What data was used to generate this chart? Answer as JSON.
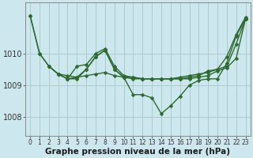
{
  "background_color": "#cce8ee",
  "grid_color": "#aacccc",
  "line_color": "#2d6a2d",
  "marker_color": "#2d6a2d",
  "xlabel": "Graphe pression niveau de la mer (hPa)",
  "xlim": [
    -0.5,
    23.5
  ],
  "ylim": [
    1007.4,
    1011.6
  ],
  "yticks": [
    1008,
    1009,
    1010
  ],
  "xticks": [
    0,
    1,
    2,
    3,
    4,
    5,
    6,
    7,
    8,
    9,
    10,
    11,
    12,
    13,
    14,
    15,
    16,
    17,
    18,
    19,
    20,
    21,
    22,
    23
  ],
  "series": [
    {
      "x": [
        0,
        1,
        2,
        3,
        4,
        5,
        6,
        7,
        8,
        9,
        10,
        11,
        12,
        13,
        14,
        15,
        16,
        17,
        18,
        19,
        20,
        21,
        22,
        23
      ],
      "y": [
        1011.2,
        1010.0,
        1009.6,
        1009.35,
        1009.3,
        1009.25,
        1009.3,
        1009.35,
        1009.4,
        1009.3,
        1009.25,
        1009.25,
        1009.2,
        1009.2,
        1009.2,
        1009.2,
        1009.25,
        1009.3,
        1009.35,
        1009.4,
        1009.5,
        1009.6,
        1010.3,
        1011.1
      ]
    },
    {
      "x": [
        0,
        1,
        2,
        3,
        4,
        5,
        6,
        7,
        8,
        9,
        10,
        11,
        12,
        13,
        14,
        15,
        16,
        17,
        18,
        19,
        20,
        21,
        22,
        23
      ],
      "y": [
        1011.2,
        1010.0,
        1009.6,
        1009.35,
        1009.2,
        1009.2,
        1009.5,
        1009.9,
        1010.1,
        1009.5,
        1009.25,
        1008.7,
        1008.7,
        1008.6,
        1008.1,
        1008.35,
        1008.65,
        1009.0,
        1009.15,
        1009.2,
        1009.2,
        1009.7,
        1010.55,
        1011.1
      ]
    },
    {
      "x": [
        3,
        4,
        5,
        6,
        7,
        8,
        9,
        10,
        11,
        12,
        13,
        14,
        15,
        16,
        17,
        18,
        19,
        20,
        21,
        22,
        23
      ],
      "y": [
        1009.35,
        1009.2,
        1009.25,
        1009.5,
        1009.9,
        1010.1,
        1009.5,
        1009.25,
        1009.2,
        1009.2,
        1009.2,
        1009.2,
        1009.2,
        1009.2,
        1009.2,
        1009.25,
        1009.3,
        1009.45,
        1009.55,
        1009.85,
        1011.1
      ]
    },
    {
      "x": [
        2,
        3,
        4,
        5,
        6,
        7,
        8,
        9,
        10,
        11,
        12,
        13,
        14,
        15,
        16,
        17,
        18,
        19,
        20,
        21,
        22,
        23
      ],
      "y": [
        1009.6,
        1009.35,
        1009.2,
        1009.6,
        1009.65,
        1010.0,
        1010.15,
        1009.6,
        1009.3,
        1009.25,
        1009.2,
        1009.2,
        1009.2,
        1009.2,
        1009.2,
        1009.25,
        1009.3,
        1009.45,
        1009.5,
        1009.9,
        1010.6,
        1011.15
      ]
    }
  ],
  "marker_size": 2.5,
  "line_width": 1.0,
  "font_size_xlabel": 7.5,
  "font_size_ytick": 7,
  "font_size_xtick": 5.5
}
